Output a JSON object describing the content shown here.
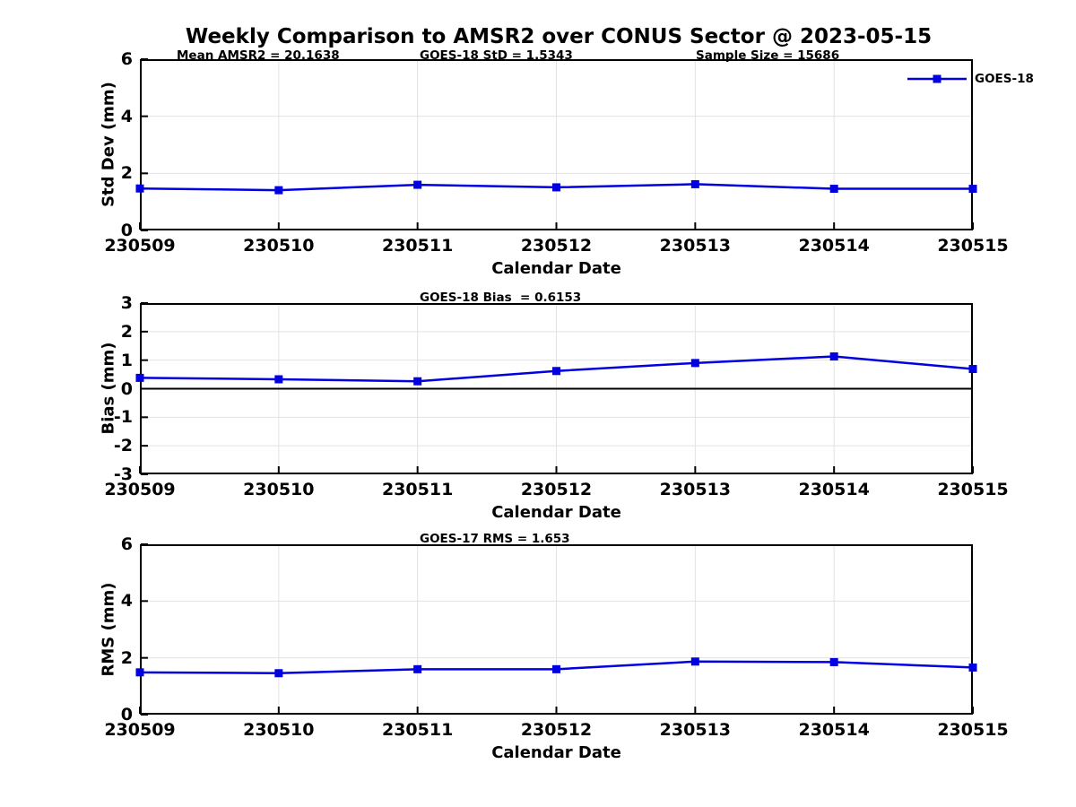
{
  "title": "Weekly Comparison to AMSR2 over CONUS Sector @ 2023-05-15",
  "legend": {
    "label": "GOES-18",
    "position": "top-right"
  },
  "colors": {
    "line": "#0000E0",
    "grid": "#E2E2E2",
    "axis": "#000000",
    "zero_line": "#000000",
    "text": "#000000",
    "background": "#FFFFFF"
  },
  "chart_data": [
    {
      "type": "line",
      "name": "std-dev",
      "title": "",
      "xlabel": "Calendar Date",
      "ylabel": "Std Dev (mm)",
      "x": [
        "230509",
        "230510",
        "230511",
        "230512",
        "230513",
        "230514",
        "230515"
      ],
      "series": [
        {
          "name": "GOES-18",
          "values": [
            1.47,
            1.41,
            1.6,
            1.51,
            1.62,
            1.46,
            1.46
          ]
        }
      ],
      "ylim": [
        0,
        6
      ],
      "yticks": [
        0,
        2,
        4,
        6
      ],
      "grid": true,
      "marker": "square",
      "zero_line": false,
      "annotations": [
        "Mean AMSR2 = 20.1638",
        "GOES-18 StD = 1.5343",
        "Sample Size = 15686"
      ],
      "legend_entries": [
        "GOES-18"
      ]
    },
    {
      "type": "line",
      "name": "bias",
      "title": "",
      "xlabel": "Calendar Date",
      "ylabel": "Bias (mm)",
      "x": [
        "230509",
        "230510",
        "230511",
        "230512",
        "230513",
        "230514",
        "230515"
      ],
      "series": [
        {
          "name": "GOES-18",
          "values": [
            0.38,
            0.33,
            0.26,
            0.62,
            0.9,
            1.13,
            0.69
          ]
        }
      ],
      "ylim": [
        -3,
        3
      ],
      "yticks": [
        -3,
        -2,
        -1,
        0,
        1,
        2,
        3
      ],
      "grid": true,
      "marker": "square",
      "zero_line": true,
      "annotations": [
        "GOES-18 Bias  = 0.6153"
      ]
    },
    {
      "type": "line",
      "name": "rms",
      "title": "",
      "xlabel": "Calendar Date",
      "ylabel": "RMS (mm)",
      "x": [
        "230509",
        "230510",
        "230511",
        "230512",
        "230513",
        "230514",
        "230515"
      ],
      "series": [
        {
          "name": "GOES-18",
          "values": [
            1.49,
            1.46,
            1.6,
            1.6,
            1.87,
            1.85,
            1.66
          ]
        }
      ],
      "ylim": [
        0,
        6
      ],
      "yticks": [
        0,
        2,
        4,
        6
      ],
      "grid": true,
      "marker": "square",
      "zero_line": false,
      "annotations": [
        "GOES-17 RMS = 1.653"
      ]
    }
  ]
}
